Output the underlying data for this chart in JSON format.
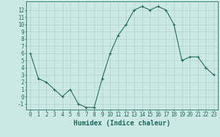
{
  "x": [
    0,
    1,
    2,
    3,
    4,
    5,
    6,
    7,
    8,
    9,
    10,
    11,
    12,
    13,
    14,
    15,
    16,
    17,
    18,
    19,
    20,
    21,
    22,
    23
  ],
  "y": [
    6.0,
    2.5,
    2.0,
    1.0,
    0.0,
    1.0,
    -1.0,
    -1.5,
    -1.5,
    2.5,
    6.0,
    8.5,
    10.0,
    12.0,
    12.5,
    12.0,
    12.5,
    12.0,
    10.0,
    5.0,
    5.5,
    5.5,
    4.0,
    3.0
  ],
  "line_color": "#1a6b5a",
  "marker": "+",
  "marker_color": "#1a6b5a",
  "bg_color": "#cce8e4",
  "grid_color": "#b0d4ce",
  "axis_color": "#1a6b5a",
  "xlabel": "Humidex (Indice chaleur)",
  "ylabel": "",
  "xlim": [
    -0.5,
    23.5
  ],
  "ylim": [
    -1.8,
    13.2
  ],
  "yticks": [
    -1,
    0,
    1,
    2,
    3,
    4,
    5,
    6,
    7,
    8,
    9,
    10,
    11,
    12
  ],
  "xticks": [
    0,
    1,
    2,
    3,
    4,
    5,
    6,
    7,
    8,
    9,
    10,
    11,
    12,
    13,
    14,
    15,
    16,
    17,
    18,
    19,
    20,
    21,
    22,
    23
  ],
  "xlabel_fontsize": 7,
  "tick_fontsize": 5.5,
  "label_color": "#1a6b5a",
  "linewidth": 0.8,
  "markersize": 3,
  "markeredgewidth": 0.8
}
